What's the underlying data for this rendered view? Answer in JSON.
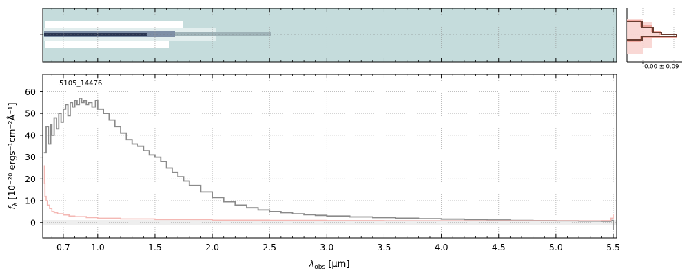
{
  "chart_data": {
    "type": "line",
    "object_id": "5105_14476",
    "xlabel_main": "λ",
    "xlabel_sub": "obs",
    "xlabel_unit": " [μm]",
    "ylabel_main": "f",
    "ylabel_sub": "λ",
    "ylabel_unit": " [10⁻²⁰ ergs⁻¹cm⁻²Å⁻¹]",
    "xlim": [
      0.52,
      5.53
    ],
    "ylim": [
      -7,
      68
    ],
    "x_ticks": [
      0.7,
      1.0,
      1.5,
      2.0,
      2.5,
      3.0,
      3.5,
      4.0,
      4.5,
      5.0,
      5.5
    ],
    "x_tick_labels": [
      "0.7",
      "1.0",
      "1.5",
      "2.0",
      "2.5",
      "3.0",
      "3.5",
      "4.0",
      "4.5",
      "5.0",
      "5.5"
    ],
    "y_ticks": [
      0,
      10,
      20,
      30,
      40,
      50,
      60
    ],
    "y_tick_labels": [
      "0",
      "10",
      "20",
      "30",
      "40",
      "50",
      "60"
    ],
    "grid": true,
    "series": [
      {
        "color": "#8a8a8a",
        "x": [
          0.53,
          0.55,
          0.57,
          0.59,
          0.6,
          0.62,
          0.64,
          0.66,
          0.68,
          0.7,
          0.72,
          0.74,
          0.76,
          0.78,
          0.8,
          0.82,
          0.84,
          0.86,
          0.88,
          0.9,
          0.92,
          0.95,
          0.98,
          1.0,
          1.05,
          1.1,
          1.15,
          1.2,
          1.25,
          1.3,
          1.35,
          1.4,
          1.45,
          1.5,
          1.55,
          1.6,
          1.65,
          1.7,
          1.75,
          1.8,
          1.9,
          2.0,
          2.1,
          2.2,
          2.3,
          2.4,
          2.5,
          2.6,
          2.7,
          2.8,
          2.9,
          3.0,
          3.2,
          3.4,
          3.6,
          3.8,
          4.0,
          4.2,
          4.4,
          4.6,
          4.8,
          5.0,
          5.2,
          5.4,
          5.48,
          5.5
        ],
        "y": [
          32,
          44,
          36,
          45,
          40,
          48,
          43,
          50,
          46,
          52,
          54,
          49,
          55,
          53,
          56,
          54,
          57,
          55,
          56,
          54,
          55,
          53,
          56,
          52,
          50,
          47,
          44,
          41,
          38,
          36,
          35,
          33,
          31,
          30,
          28,
          25,
          23,
          21,
          19,
          17,
          14,
          11.5,
          9.5,
          8,
          6.8,
          5.8,
          5,
          4.5,
          4,
          3.6,
          3.3,
          3,
          2.6,
          2.3,
          2,
          1.8,
          1.6,
          1.4,
          1.2,
          1,
          0.9,
          0.8,
          0.7,
          0.6,
          1,
          -3.5
        ]
      },
      {
        "color": "#f4b8b4",
        "x": [
          0.53,
          0.535,
          0.54,
          0.55,
          0.56,
          0.58,
          0.6,
          0.62,
          0.65,
          0.7,
          0.75,
          0.8,
          0.9,
          1.0,
          1.2,
          1.5,
          2.0,
          2.5,
          3.0,
          3.5,
          4.0,
          4.5,
          5.0,
          5.4,
          5.48,
          5.5
        ],
        "y": [
          26,
          18,
          12,
          10,
          8,
          6.5,
          5,
          4.5,
          4,
          3.5,
          3,
          2.7,
          2.3,
          2,
          1.7,
          1.4,
          1.1,
          1,
          0.9,
          0.8,
          0.8,
          0.8,
          0.8,
          0.9,
          2,
          4
        ]
      }
    ],
    "inset_label": "-0.00 ± 0.09"
  }
}
